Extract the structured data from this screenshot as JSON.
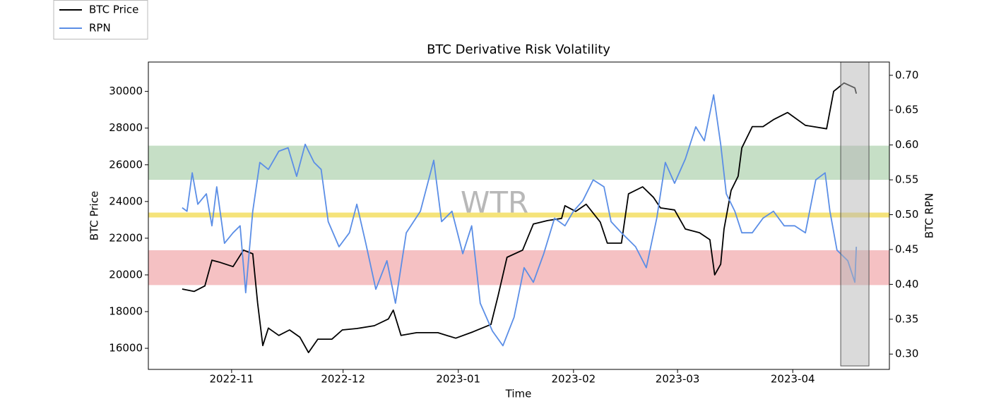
{
  "chart_data": {
    "type": "line",
    "title": "BTC Derivative Risk Volatility",
    "xlabel": "Time",
    "ylabel": "BTC Price",
    "y2label": "BTC RPN",
    "watermark": "WTR",
    "legend": "upper left",
    "xlim": [
      -22.4,
      177
    ],
    "xticks": [
      {
        "value": 0,
        "label": "2022-11"
      },
      {
        "value": 30,
        "label": "2022-12"
      },
      {
        "value": 61,
        "label": "2023-01"
      },
      {
        "value": 92,
        "label": "2023-02"
      },
      {
        "value": 120,
        "label": "2023-03"
      },
      {
        "value": 151,
        "label": "2023-04"
      }
    ],
    "ylim": [
      14850,
      31600
    ],
    "yticks": [
      16000,
      18000,
      20000,
      22000,
      24000,
      26000,
      28000,
      30000
    ],
    "y2lim": [
      0.278,
      0.719
    ],
    "y2ticks": [
      {
        "value": 0.3,
        "label": "0.30"
      },
      0.35,
      {
        "value": 0.4,
        "label": "0.40"
      },
      0.45,
      {
        "value": 0.5,
        "label": "0.50"
      },
      0.55,
      {
        "value": 0.6,
        "label": "0.60"
      },
      0.65,
      {
        "value": 0.7,
        "label": "0.70"
      }
    ],
    "bands": [
      {
        "y2": [
          0.55,
          0.599
        ],
        "color": "#c6dfc6"
      },
      {
        "y2": [
          0.496,
          0.503
        ],
        "color": "#f5e37a"
      },
      {
        "y2": [
          0.399,
          0.449
        ],
        "color": "#f5c1c3"
      }
    ],
    "shaded_region": {
      "x": [
        163.9,
        171.5
      ],
      "y2": [
        0.283,
        0.719
      ],
      "color": "#b5b5b5"
    },
    "series": [
      {
        "name": "BTC Price",
        "color": "#000000",
        "x": [
          -13.3,
          -10.1,
          -7.2,
          -5.3,
          -3.4,
          0.4,
          3.2,
          5.7,
          7.0,
          8.4,
          9.9,
          12.7,
          15.6,
          18.4,
          20.7,
          23.2,
          27.0,
          29.8,
          33.7,
          38.4,
          42.2,
          43.5,
          45.6,
          49.8,
          55.5,
          60.3,
          65.0,
          69.8,
          71.7,
          74.1,
          78.3,
          81.2,
          85.0,
          88.8,
          89.7,
          92.6,
          95.4,
          99.2,
          101.1,
          104.9,
          106.8,
          110.6,
          113.5,
          115.4,
          119.2,
          122.1,
          125.9,
          128.7,
          130.0,
          131.6,
          132.5,
          134.4,
          136.3,
          137.3,
          140.1,
          143.0,
          145.8,
          149.6,
          154.4,
          160.1,
          162.0,
          164.8,
          167.7,
          168.1
        ],
        "values": [
          19230,
          19100,
          19400,
          20800,
          20700,
          20450,
          21350,
          21150,
          18460,
          16150,
          17100,
          16700,
          17000,
          16600,
          15770,
          16500,
          16500,
          17000,
          17080,
          17230,
          17600,
          18080,
          16700,
          16850,
          16850,
          16550,
          16900,
          17300,
          18850,
          20960,
          21350,
          22770,
          22960,
          23080,
          23770,
          23460,
          23850,
          22880,
          21730,
          21730,
          24420,
          24800,
          24230,
          23650,
          23540,
          22500,
          22300,
          21920,
          20000,
          20580,
          22500,
          24600,
          25380,
          26920,
          28080,
          28080,
          28460,
          28850,
          28150,
          27960,
          30000,
          30460,
          30190,
          29880
        ]
      },
      {
        "name": "RPN",
        "color": "#5b8ee6",
        "axis": "y2",
        "x": [
          -13.3,
          -12.0,
          -10.6,
          -9.1,
          -6.8,
          -5.3,
          -4.0,
          -1.9,
          0.4,
          2.3,
          3.8,
          5.7,
          7.6,
          9.9,
          12.7,
          15.2,
          17.5,
          19.8,
          22.2,
          24.1,
          26.0,
          28.9,
          31.7,
          33.7,
          36.1,
          38.8,
          41.8,
          44.1,
          47.0,
          50.8,
          54.4,
          56.5,
          59.3,
          62.2,
          64.6,
          66.9,
          70.2,
          73.0,
          76.0,
          78.7,
          81.2,
          84.0,
          86.9,
          89.7,
          92.0,
          94.5,
          97.3,
          100.2,
          102.1,
          104.9,
          108.7,
          111.6,
          114.4,
          116.7,
          119.2,
          122.1,
          124.9,
          127.2,
          129.7,
          131.6,
          133.1,
          135.4,
          137.3,
          140.1,
          143.0,
          145.8,
          148.7,
          151.5,
          154.4,
          157.2,
          159.7,
          161.0,
          162.9,
          165.8,
          167.7,
          168.1
        ],
        "values": [
          0.51,
          0.505,
          0.56,
          0.515,
          0.53,
          0.484,
          0.54,
          0.459,
          0.474,
          0.484,
          0.388,
          0.505,
          0.575,
          0.565,
          0.591,
          0.596,
          0.555,
          0.601,
          0.575,
          0.565,
          0.49,
          0.454,
          0.474,
          0.515,
          0.459,
          0.393,
          0.434,
          0.373,
          0.474,
          0.505,
          0.578,
          0.49,
          0.505,
          0.444,
          0.484,
          0.373,
          0.333,
          0.312,
          0.353,
          0.424,
          0.403,
          0.444,
          0.495,
          0.484,
          0.505,
          0.52,
          0.55,
          0.54,
          0.49,
          0.474,
          0.454,
          0.424,
          0.495,
          0.575,
          0.545,
          0.58,
          0.626,
          0.606,
          0.672,
          0.601,
          0.53,
          0.505,
          0.474,
          0.474,
          0.495,
          0.505,
          0.484,
          0.484,
          0.474,
          0.55,
          0.56,
          0.505,
          0.449,
          0.434,
          0.403,
          0.454
        ]
      }
    ]
  }
}
